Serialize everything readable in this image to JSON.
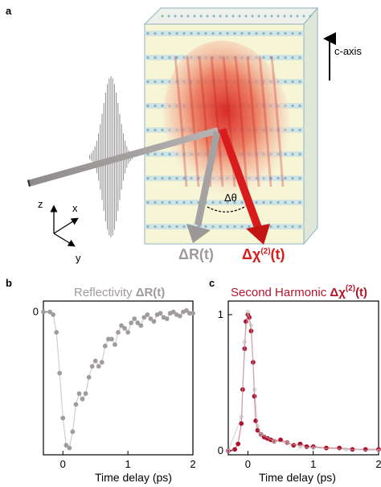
{
  "panel_a": {
    "letter": "a",
    "c_axis_label": "c-axis",
    "angle_label": "Δθ",
    "reflect_label": "ΔR(t)",
    "shg_delta_chi": "Δχ",
    "shg_sup": "(2)",
    "shg_tail": "(t)",
    "coord_z": "z",
    "coord_x": "x",
    "coord_y": "y",
    "colors": {
      "beam": "#9a9595",
      "spot": "#e23b2e",
      "crystal_face": "#f6f5d6",
      "lattice": "#7fb5c8"
    }
  },
  "panel_b": {
    "letter": "b",
    "title_text": "Reflectivity ",
    "title_symbol": "ΔR(t)",
    "xlabel": "Time delay (ps)"
  },
  "panel_c": {
    "letter": "c",
    "title_text": "Second Harmonic ",
    "title_symbol": "Δχ",
    "title_sup": "(2)",
    "title_tail": "(t)",
    "xlabel": "Time delay (ps)"
  },
  "chart_data": [
    {
      "type": "scatter",
      "title": "Reflectivity ΔR(t)",
      "xlabel": "Time delay (ps)",
      "ylabel": "",
      "xlim": [
        -0.3,
        2.0
      ],
      "ylim": [
        -1.05,
        0.08
      ],
      "x_ticks": [
        0,
        1,
        2
      ],
      "y_ticks": [
        0
      ],
      "series": [
        {
          "color": "#a19c9c",
          "x": [
            -0.3,
            -0.2,
            -0.15,
            -0.1,
            -0.05,
            0.0,
            0.05,
            0.1,
            0.15,
            0.2,
            0.25,
            0.3,
            0.35,
            0.4,
            0.45,
            0.5,
            0.55,
            0.6,
            0.65,
            0.7,
            0.75,
            0.8,
            0.85,
            0.9,
            0.95,
            1.0,
            1.05,
            1.1,
            1.15,
            1.2,
            1.25,
            1.3,
            1.35,
            1.4,
            1.45,
            1.5,
            1.55,
            1.6,
            1.65,
            1.7,
            1.75,
            1.8,
            1.85,
            1.9,
            1.95,
            2.0
          ],
          "y": [
            0.0,
            0.0,
            -0.02,
            -0.15,
            -0.45,
            -0.78,
            -0.98,
            -1.0,
            -0.88,
            -0.68,
            -0.6,
            -0.64,
            -0.6,
            -0.48,
            -0.4,
            -0.36,
            -0.4,
            -0.37,
            -0.25,
            -0.2,
            -0.2,
            -0.24,
            -0.15,
            -0.1,
            -0.12,
            -0.15,
            -0.08,
            -0.05,
            -0.08,
            -0.1,
            -0.04,
            -0.02,
            -0.05,
            -0.07,
            -0.02,
            -0.01,
            -0.04,
            -0.05,
            -0.01,
            0.0,
            -0.02,
            -0.03,
            0.0,
            0.01,
            -0.01,
            -0.01
          ]
        }
      ]
    },
    {
      "type": "scatter",
      "title": "Second Harmonic Δχ(2)(t)",
      "xlabel": "Time delay (ps)",
      "ylabel": "",
      "xlim": [
        -0.3,
        2.0
      ],
      "ylim": [
        -0.03,
        1.1
      ],
      "x_ticks": [
        0,
        1,
        2
      ],
      "y_ticks": [
        0,
        1
      ],
      "series": [
        {
          "color": "#b0112c",
          "x": [
            -0.3,
            -0.2,
            -0.15,
            -0.1,
            -0.08,
            -0.05,
            -0.03,
            0.0,
            0.02,
            0.05,
            0.08,
            0.1,
            0.12,
            0.15,
            0.2,
            0.25,
            0.3,
            0.35,
            0.4,
            0.5,
            0.6,
            0.7,
            0.8,
            0.9,
            1.0,
            1.2,
            1.4,
            1.6,
            1.8,
            2.0
          ],
          "y": [
            0.0,
            0.01,
            0.05,
            0.2,
            0.45,
            0.75,
            0.95,
            1.0,
            0.98,
            0.88,
            0.65,
            0.4,
            0.22,
            0.15,
            0.12,
            0.1,
            0.09,
            0.08,
            0.07,
            0.08,
            0.06,
            0.04,
            0.05,
            0.03,
            0.03,
            0.02,
            0.02,
            0.01,
            0.01,
            0.01
          ]
        },
        {
          "color": "#bdbdbd",
          "x": [
            -0.3,
            -0.1,
            -0.05,
            0.0,
            0.05,
            0.1,
            0.15,
            0.2,
            0.4,
            0.6,
            0.8,
            1.0,
            1.5,
            2.0
          ],
          "y": [
            0.0,
            0.25,
            0.8,
            1.02,
            0.92,
            0.45,
            0.18,
            0.12,
            0.07,
            0.06,
            0.03,
            0.02,
            0.01,
            0.0
          ]
        }
      ]
    }
  ]
}
